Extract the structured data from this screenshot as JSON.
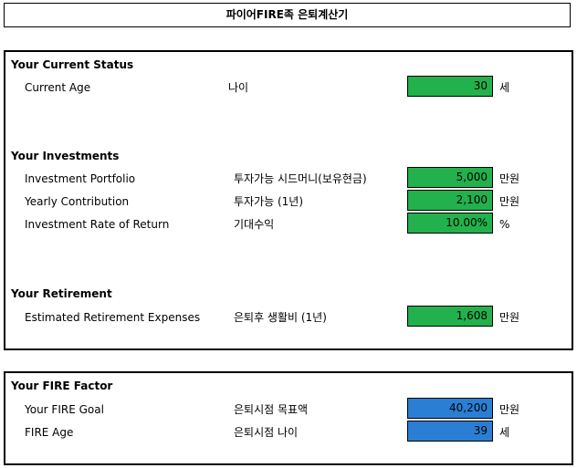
{
  "title": "파이어FIRE족 은퇴계산기",
  "current_status": {
    "section_title": "Your Current Status",
    "rows": [
      {
        "label_en": "Current Age",
        "label_ko": "나이",
        "value": "30",
        "unit": "세"
      }
    ]
  },
  "investments": {
    "section_title": "Your Investments",
    "rows": [
      {
        "label_en": "Investment Portfolio",
        "label_ko": "투자가능 시드머니(보유현금)",
        "value": "5,000",
        "unit": "만원"
      },
      {
        "label_en": "Yearly Contribution",
        "label_ko": "투자가능 (1년)",
        "value": "2,100",
        "unit": "만원"
      },
      {
        "label_en": "Investment Rate of Return",
        "label_ko": "기대수익",
        "value": "10.00%",
        "unit": "%"
      }
    ]
  },
  "retirement": {
    "section_title": "Your Retirement",
    "rows": [
      {
        "label_en": "Estimated Retirement Expenses",
        "label_ko": "은퇴후 생활비 (1년)",
        "value": "1,608",
        "unit": "만원"
      }
    ]
  },
  "fire_factor": {
    "section_title": "Your FIRE Factor",
    "rows": [
      {
        "label_en": "Your FIRE Goal",
        "label_ko": "은퇴시점 목표액",
        "value": "40,200",
        "unit": "만원"
      },
      {
        "label_en": "FIRE Age",
        "label_ko": "은퇴시점 나이",
        "value": "39",
        "unit": "세"
      }
    ]
  },
  "colors": {
    "input_cell": "#22b14c",
    "output_cell": "#2a7fd4"
  }
}
